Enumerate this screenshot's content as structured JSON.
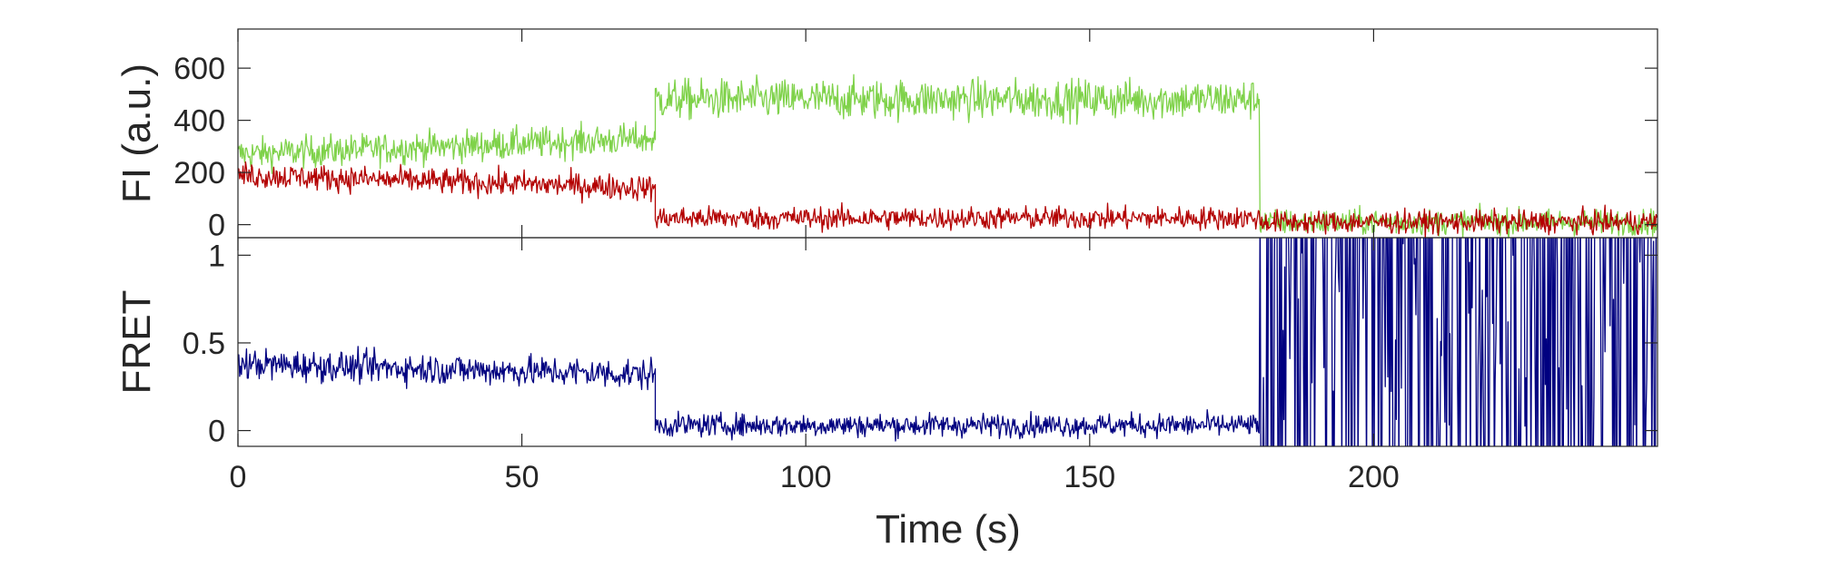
{
  "chart_data": [
    {
      "type": "line",
      "panel": "top",
      "ylabel": "FI (a.u.)",
      "xlabel": "",
      "xlim": [
        0,
        250
      ],
      "ylim": [
        -50,
        750
      ],
      "yticks": [
        0,
        200,
        400,
        600
      ],
      "xticks": [
        0,
        50,
        100,
        150,
        200
      ],
      "x_tick_labels_shown": false,
      "grid": false,
      "series": [
        {
          "color": "#7fd24a",
          "segments": [
            {
              "t_start": 0,
              "t_end": 73.5,
              "mean_start": 270,
              "mean_end": 330,
              "noise": 55
            },
            {
              "t_start": 73.5,
              "t_end": 180,
              "mean_start": 480,
              "mean_end": 480,
              "noise": 70
            },
            {
              "t_start": 180,
              "t_end": 250,
              "mean_start": 10,
              "mean_end": 10,
              "noise": 45
            }
          ]
        },
        {
          "color": "#b30000",
          "segments": [
            {
              "t_start": 0,
              "t_end": 73.5,
              "mean_start": 190,
              "mean_end": 140,
              "noise": 45
            },
            {
              "t_start": 73.5,
              "t_end": 180,
              "mean_start": 25,
              "mean_end": 25,
              "noise": 40
            },
            {
              "t_start": 180,
              "t_end": 250,
              "mean_start": 10,
              "mean_end": 10,
              "noise": 40
            }
          ]
        }
      ]
    },
    {
      "type": "line",
      "panel": "bottom",
      "ylabel": "FRET",
      "xlabel": "Time (s)",
      "xlim": [
        0,
        250
      ],
      "ylim": [
        -0.09,
        1.1
      ],
      "yticks": [
        0,
        0.5,
        1
      ],
      "ytick_labels": [
        "0",
        "0.5",
        "1"
      ],
      "xticks": [
        0,
        50,
        100,
        150,
        200
      ],
      "xtick_labels": [
        "0",
        "50",
        "100",
        "150",
        "200"
      ],
      "grid": false,
      "series": [
        {
          "color": "#000080",
          "segments": [
            {
              "t_start": 0,
              "t_end": 73.5,
              "mean_start": 0.38,
              "mean_end": 0.32,
              "noise": 0.08
            },
            {
              "t_start": 73.5,
              "t_end": 180,
              "mean_start": 0.03,
              "mean_end": 0.03,
              "noise": 0.06
            },
            {
              "t_start": 180,
              "t_end": 250,
              "mean_start": 0.55,
              "mean_end": 0.55,
              "noise": 0.6,
              "clipped": true
            }
          ]
        }
      ]
    }
  ]
}
